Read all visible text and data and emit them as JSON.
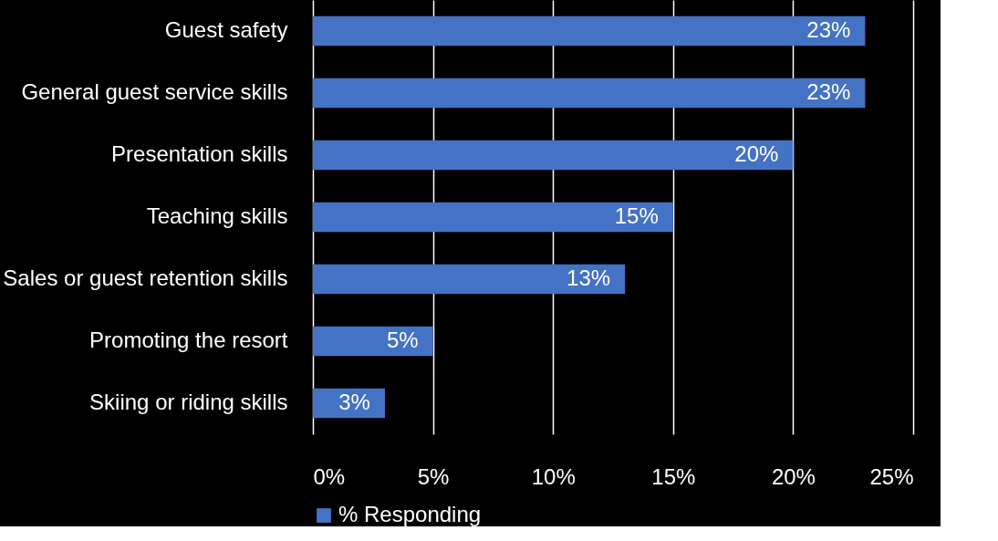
{
  "chart_data": {
    "type": "bar",
    "orientation": "horizontal",
    "categories": [
      "Guest safety",
      "General guest service skills",
      "Presentation skills",
      "Teaching skills",
      "Sales or guest retention skills",
      "Promoting the resort",
      "Skiing or riding skills"
    ],
    "series": [
      {
        "name": "% Responding",
        "color": "#4472c4",
        "values": [
          23,
          23,
          20,
          15,
          13,
          5,
          3
        ]
      }
    ],
    "value_labels": [
      "23%",
      "23%",
      "20%",
      "15%",
      "13%",
      "5%",
      "3%"
    ],
    "xlim": [
      0,
      25
    ],
    "xticks": [
      {
        "value": 0,
        "label": "0%"
      },
      {
        "value": 5,
        "label": "5%"
      },
      {
        "value": 10,
        "label": "10%"
      },
      {
        "value": 15,
        "label": "15%"
      },
      {
        "value": 20,
        "label": "20%"
      },
      {
        "value": 25,
        "label": "25%"
      }
    ],
    "grid": "x",
    "legend": "bottom"
  }
}
